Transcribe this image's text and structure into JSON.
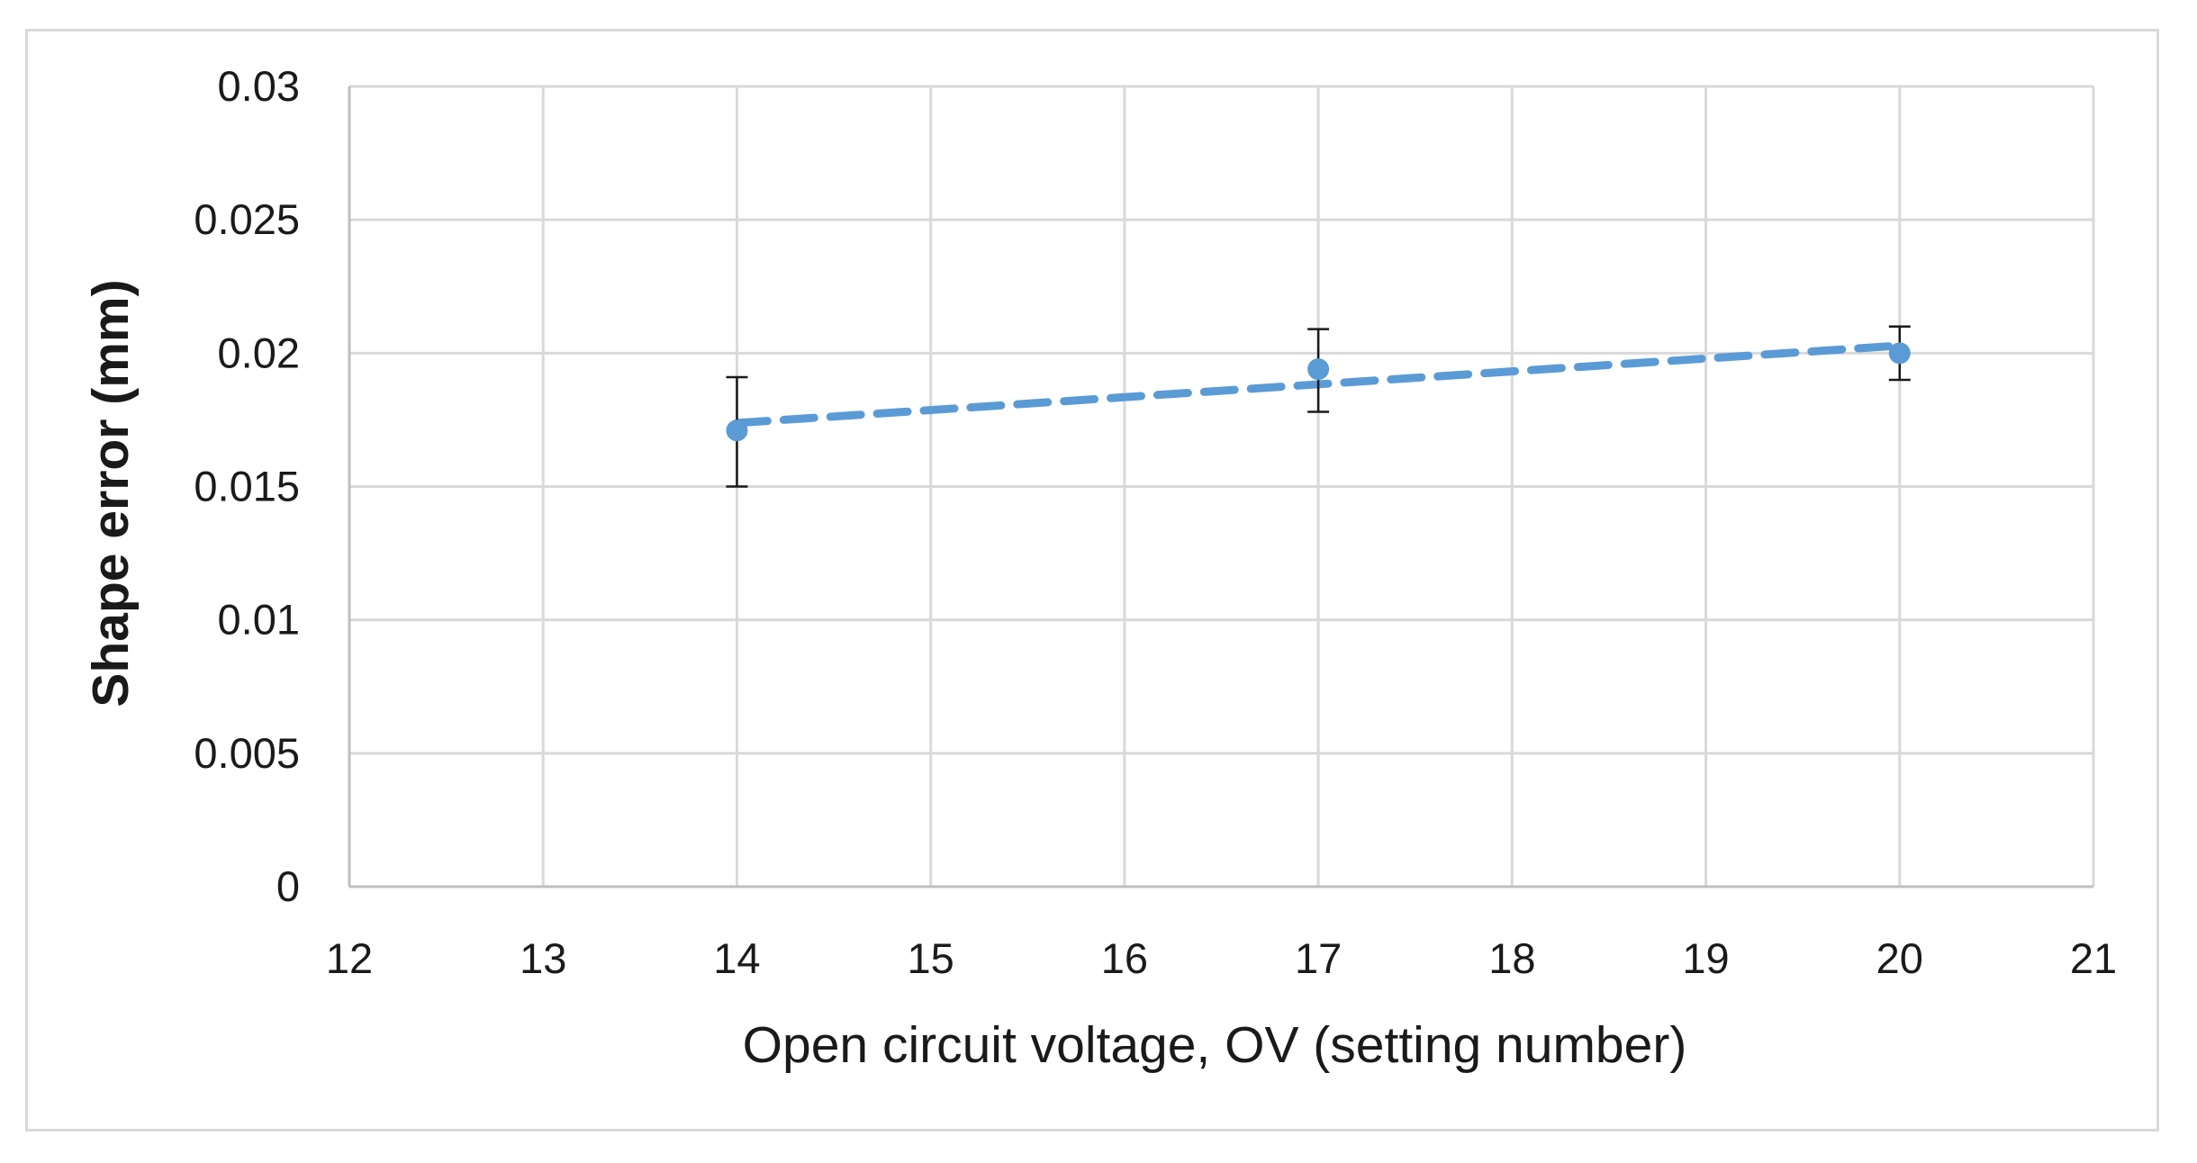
{
  "chart_data": {
    "type": "scatter",
    "title": "",
    "xlabel": "Open circuit voltage, OV (setting number)",
    "ylabel": "Shape error (mm)",
    "xlim": [
      12,
      21
    ],
    "ylim": [
      0,
      0.03
    ],
    "x_ticks": [
      "12",
      "13",
      "14",
      "15",
      "16",
      "17",
      "18",
      "19",
      "20",
      "21"
    ],
    "y_ticks": [
      "0",
      "0.005",
      "0.01",
      "0.015",
      "0.02",
      "0.025",
      "0.03"
    ],
    "grid": true,
    "series": [
      {
        "name": "Shape error",
        "x": [
          14,
          17,
          20
        ],
        "y": [
          0.0171,
          0.0194,
          0.02
        ],
        "error_low": [
          0.0021,
          0.0016,
          0.001
        ],
        "error_high": [
          0.002,
          0.0015,
          0.001
        ],
        "color": "#5b9bd5"
      }
    ],
    "trendline": {
      "type": "linear",
      "style": "dashed",
      "color": "#5b9bd5"
    }
  },
  "colors": {
    "marker": "#5b9bd5",
    "grid": "#d9d9d9",
    "error_bar": "#1a1a1a"
  }
}
